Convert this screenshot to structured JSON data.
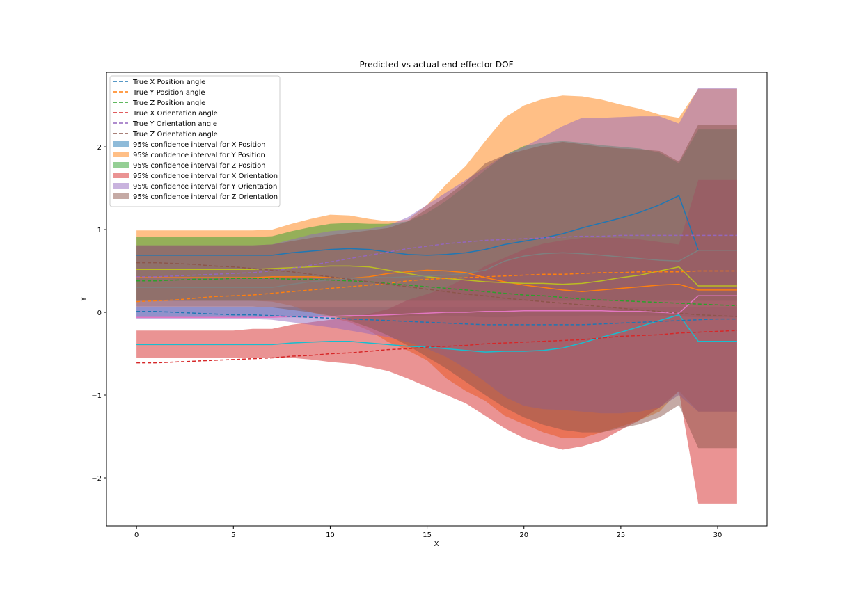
{
  "chart_data": {
    "type": "line",
    "title": "Predicted vs actual end-effector DOF",
    "xlabel": "X",
    "ylabel": "Y",
    "xlim": [
      -1.55,
      32.55
    ],
    "ylim": [
      -2.58,
      2.9
    ],
    "xticks": [
      0,
      5,
      10,
      15,
      20,
      25,
      30
    ],
    "yticks": [
      -2,
      -1,
      0,
      1,
      2
    ],
    "x": [
      0,
      1,
      2,
      3,
      4,
      5,
      6,
      7,
      8,
      9,
      10,
      11,
      12,
      13,
      14,
      15,
      16,
      17,
      18,
      19,
      20,
      21,
      22,
      23,
      24,
      25,
      26,
      27,
      28,
      29,
      30,
      31
    ],
    "legend_position": "upper left",
    "true_series": [
      {
        "name": "True X Position angle",
        "color": "#1f77b4",
        "values": [
          0.01,
          0.01,
          0.0,
          -0.01,
          -0.02,
          -0.03,
          -0.03,
          -0.04,
          -0.05,
          -0.06,
          -0.07,
          -0.08,
          -0.09,
          -0.1,
          -0.11,
          -0.12,
          -0.13,
          -0.14,
          -0.15,
          -0.15,
          -0.15,
          -0.15,
          -0.15,
          -0.15,
          -0.14,
          -0.13,
          -0.12,
          -0.11,
          -0.1,
          -0.09,
          -0.08,
          -0.08
        ]
      },
      {
        "name": "True Y Position angle",
        "color": "#ff7f0e",
        "values": [
          0.13,
          0.14,
          0.15,
          0.17,
          0.19,
          0.2,
          0.21,
          0.23,
          0.25,
          0.27,
          0.29,
          0.31,
          0.33,
          0.35,
          0.38,
          0.4,
          0.41,
          0.42,
          0.43,
          0.44,
          0.45,
          0.46,
          0.46,
          0.47,
          0.48,
          0.48,
          0.49,
          0.49,
          0.49,
          0.5,
          0.5,
          0.5
        ]
      },
      {
        "name": "True Z Position angle",
        "color": "#2ca02c",
        "values": [
          0.38,
          0.38,
          0.39,
          0.4,
          0.4,
          0.41,
          0.41,
          0.41,
          0.4,
          0.4,
          0.39,
          0.38,
          0.37,
          0.35,
          0.33,
          0.31,
          0.29,
          0.27,
          0.25,
          0.23,
          0.21,
          0.2,
          0.18,
          0.16,
          0.15,
          0.14,
          0.13,
          0.12,
          0.11,
          0.1,
          0.09,
          0.08
        ]
      },
      {
        "name": "True X Orientation angle",
        "color": "#d62728",
        "values": [
          -0.61,
          -0.61,
          -0.6,
          -0.59,
          -0.58,
          -0.57,
          -0.56,
          -0.55,
          -0.53,
          -0.52,
          -0.5,
          -0.49,
          -0.47,
          -0.45,
          -0.44,
          -0.42,
          -0.41,
          -0.4,
          -0.38,
          -0.37,
          -0.36,
          -0.35,
          -0.34,
          -0.33,
          -0.31,
          -0.29,
          -0.28,
          -0.27,
          -0.25,
          -0.24,
          -0.23,
          -0.22
        ]
      },
      {
        "name": "True Y Orientation angle",
        "color": "#9467bd",
        "values": [
          0.43,
          0.43,
          0.44,
          0.45,
          0.46,
          0.47,
          0.48,
          0.5,
          0.53,
          0.57,
          0.61,
          0.65,
          0.69,
          0.73,
          0.77,
          0.8,
          0.83,
          0.85,
          0.87,
          0.88,
          0.89,
          0.9,
          0.91,
          0.92,
          0.92,
          0.93,
          0.93,
          0.93,
          0.93,
          0.93,
          0.93,
          0.93
        ]
      },
      {
        "name": "True Z Orientation angle",
        "color": "#8c564b",
        "values": [
          0.6,
          0.6,
          0.59,
          0.58,
          0.56,
          0.55,
          0.53,
          0.51,
          0.49,
          0.46,
          0.43,
          0.4,
          0.37,
          0.34,
          0.31,
          0.28,
          0.25,
          0.22,
          0.2,
          0.17,
          0.15,
          0.13,
          0.11,
          0.09,
          0.07,
          0.05,
          0.03,
          0.01,
          -0.01,
          -0.03,
          -0.04,
          -0.05
        ]
      }
    ],
    "confidence_intervals": [
      {
        "name": "95% confidence interval for X Position",
        "color": "#1f77b4",
        "lower": [
          -0.06,
          -0.06,
          -0.06,
          -0.06,
          -0.06,
          -0.06,
          -0.06,
          -0.06,
          -0.06,
          -0.06,
          -0.05,
          -0.05,
          -0.06,
          -0.06,
          -0.05,
          -0.04,
          -0.04,
          -0.05,
          -0.06,
          -0.06,
          -0.05,
          -0.05,
          -0.05,
          -0.04,
          -0.04,
          -0.04,
          -0.04,
          -0.04,
          -0.05,
          -0.06,
          -0.06,
          -0.06
        ],
        "upper": [
          0.06,
          0.06,
          0.06,
          0.06,
          0.06,
          0.06,
          0.06,
          0.06,
          0.06,
          0.06,
          0.06,
          0.06,
          0.06,
          0.06,
          0.06,
          0.06,
          0.06,
          0.06,
          0.06,
          0.06,
          0.06,
          0.06,
          0.06,
          0.06,
          0.06,
          0.06,
          0.06,
          0.06,
          0.06,
          0.06,
          0.06,
          0.06
        ]
      },
      {
        "name": "95% confidence interval for Y Position",
        "color": "#ff7f0e",
        "lower": [
          0.14,
          0.14,
          0.14,
          0.14,
          0.14,
          0.14,
          0.14,
          0.13,
          0.08,
          0.0,
          -0.06,
          -0.12,
          -0.22,
          -0.36,
          -0.46,
          -0.58,
          -0.8,
          -0.95,
          -1.07,
          -1.25,
          -1.35,
          -1.45,
          -1.52,
          -1.52,
          -1.45,
          -1.38,
          -1.3,
          -1.2,
          -0.95,
          -1.2,
          -1.2,
          -1.2
        ],
        "upper": [
          0.99,
          0.99,
          0.99,
          0.99,
          0.99,
          0.99,
          0.99,
          1.0,
          1.07,
          1.13,
          1.18,
          1.17,
          1.13,
          1.1,
          1.12,
          1.3,
          1.55,
          1.77,
          2.07,
          2.35,
          2.5,
          2.58,
          2.62,
          2.61,
          2.57,
          2.51,
          2.46,
          2.39,
          2.35,
          2.7,
          2.7,
          2.7
        ]
      },
      {
        "name": "95% confidence interval for Z Position",
        "color": "#2ca02c",
        "lower": [
          0.14,
          0.14,
          0.14,
          0.14,
          0.14,
          0.14,
          0.14,
          0.14,
          0.14,
          0.14,
          0.14,
          0.14,
          0.14,
          0.14,
          0.14,
          0.14,
          0.14,
          0.14,
          0.14,
          0.14,
          0.14,
          0.14,
          0.14,
          0.14,
          0.14,
          0.14,
          0.14,
          0.14,
          0.14,
          0.14,
          0.14,
          0.14
        ],
        "upper": [
          0.91,
          0.91,
          0.91,
          0.91,
          0.91,
          0.91,
          0.91,
          0.92,
          0.98,
          1.03,
          1.07,
          1.08,
          1.07,
          1.07,
          1.1,
          1.2,
          1.35,
          1.53,
          1.72,
          1.9,
          2.01,
          2.05,
          2.07,
          2.05,
          2.02,
          2.0,
          1.98,
          1.93,
          1.8,
          2.21,
          2.21,
          2.21
        ]
      },
      {
        "name": "95% confidence interval for X Orientation",
        "color": "#d62728",
        "lower": [
          -0.55,
          -0.55,
          -0.55,
          -0.55,
          -0.55,
          -0.55,
          -0.55,
          -0.55,
          -0.55,
          -0.57,
          -0.6,
          -0.62,
          -0.66,
          -0.71,
          -0.8,
          -0.9,
          -1.0,
          -1.1,
          -1.25,
          -1.4,
          -1.52,
          -1.6,
          -1.66,
          -1.62,
          -1.55,
          -1.42,
          -1.3,
          -1.15,
          -0.95,
          -2.31,
          -2.31,
          -2.31
        ],
        "upper": [
          -0.22,
          -0.22,
          -0.22,
          -0.22,
          -0.22,
          -0.22,
          -0.2,
          -0.2,
          -0.15,
          -0.12,
          -0.09,
          -0.06,
          -0.02,
          0.04,
          0.15,
          0.22,
          0.3,
          0.42,
          0.56,
          0.66,
          0.76,
          0.83,
          0.87,
          0.9,
          0.9,
          0.9,
          0.88,
          0.85,
          0.82,
          1.6,
          1.6,
          1.6
        ]
      },
      {
        "name": "95% confidence interval for Y Orientation",
        "color": "#9467bd",
        "lower": [
          -0.08,
          -0.08,
          -0.08,
          -0.08,
          -0.08,
          -0.08,
          -0.08,
          -0.09,
          -0.12,
          -0.15,
          -0.18,
          -0.22,
          -0.26,
          -0.3,
          -0.36,
          -0.44,
          -0.54,
          -0.68,
          -0.84,
          -1.02,
          -1.13,
          -1.17,
          -1.18,
          -1.2,
          -1.22,
          -1.22,
          -1.2,
          -1.15,
          -1.0,
          -1.2,
          -1.2,
          -1.2
        ],
        "upper": [
          0.81,
          0.81,
          0.81,
          0.81,
          0.81,
          0.81,
          0.81,
          0.82,
          0.88,
          0.94,
          0.98,
          1.0,
          1.01,
          1.05,
          1.15,
          1.3,
          1.45,
          1.6,
          1.75,
          1.9,
          2.0,
          2.12,
          2.25,
          2.35,
          2.35,
          2.36,
          2.37,
          2.37,
          2.28,
          2.71,
          2.71,
          2.71
        ]
      },
      {
        "name": "95% confidence interval for Z Orientation",
        "color": "#8c564b",
        "lower": [
          0.07,
          0.07,
          0.07,
          0.07,
          0.07,
          0.07,
          0.07,
          0.06,
          0.03,
          0.0,
          -0.04,
          -0.1,
          -0.18,
          -0.28,
          -0.4,
          -0.54,
          -0.68,
          -0.84,
          -1.0,
          -1.15,
          -1.27,
          -1.36,
          -1.42,
          -1.45,
          -1.45,
          -1.4,
          -1.35,
          -1.27,
          -1.12,
          -1.64,
          -1.64,
          -1.64
        ],
        "upper": [
          0.81,
          0.81,
          0.81,
          0.81,
          0.81,
          0.81,
          0.81,
          0.82,
          0.86,
          0.9,
          0.93,
          0.96,
          0.99,
          1.02,
          1.1,
          1.25,
          1.4,
          1.58,
          1.8,
          1.9,
          1.96,
          2.02,
          2.06,
          2.03,
          2.0,
          1.98,
          1.97,
          1.95,
          1.82,
          2.27,
          2.27,
          2.27
        ]
      }
    ],
    "predicted_series": [
      {
        "color": "#1f77b4",
        "values": [
          0.69,
          0.69,
          0.69,
          0.69,
          0.69,
          0.69,
          0.69,
          0.69,
          0.72,
          0.74,
          0.76,
          0.77,
          0.76,
          0.73,
          0.7,
          0.69,
          0.7,
          0.72,
          0.76,
          0.82,
          0.86,
          0.9,
          0.95,
          1.02,
          1.08,
          1.14,
          1.21,
          1.3,
          1.41,
          0.75,
          0.75,
          0.75
        ]
      },
      {
        "color": "#ff7f0e",
        "values": [
          0.42,
          0.42,
          0.42,
          0.42,
          0.42,
          0.42,
          0.42,
          0.43,
          0.43,
          0.43,
          0.42,
          0.41,
          0.43,
          0.47,
          0.49,
          0.51,
          0.5,
          0.48,
          0.42,
          0.37,
          0.33,
          0.3,
          0.27,
          0.25,
          0.27,
          0.29,
          0.31,
          0.33,
          0.34,
          0.27,
          0.27,
          0.27
        ]
      },
      {
        "color": "#bcbd22",
        "values": [
          0.52,
          0.52,
          0.52,
          0.52,
          0.52,
          0.52,
          0.52,
          0.53,
          0.54,
          0.55,
          0.56,
          0.56,
          0.55,
          0.51,
          0.47,
          0.43,
          0.41,
          0.39,
          0.37,
          0.36,
          0.35,
          0.35,
          0.34,
          0.35,
          0.38,
          0.42,
          0.45,
          0.5,
          0.55,
          0.32,
          0.32,
          0.32
        ]
      },
      {
        "color": "#e377c2",
        "values": [
          -0.06,
          -0.06,
          -0.06,
          -0.06,
          -0.06,
          -0.06,
          -0.06,
          -0.06,
          -0.05,
          -0.05,
          -0.05,
          -0.04,
          -0.04,
          -0.03,
          -0.02,
          -0.01,
          0.0,
          0.0,
          0.01,
          0.01,
          0.02,
          0.02,
          0.02,
          0.02,
          0.02,
          0.01,
          0.01,
          0.0,
          -0.01,
          0.2,
          0.2,
          0.2
        ]
      },
      {
        "color": "#17becf",
        "values": [
          -0.39,
          -0.39,
          -0.39,
          -0.39,
          -0.39,
          -0.39,
          -0.39,
          -0.39,
          -0.37,
          -0.36,
          -0.35,
          -0.35,
          -0.37,
          -0.39,
          -0.41,
          -0.42,
          -0.44,
          -0.46,
          -0.48,
          -0.47,
          -0.47,
          -0.46,
          -0.43,
          -0.37,
          -0.3,
          -0.24,
          -0.17,
          -0.1,
          -0.03,
          -0.35,
          -0.35,
          -0.35
        ]
      },
      {
        "color": "#7f7f7f",
        "values": [
          0.3,
          0.3,
          0.3,
          0.3,
          0.3,
          0.3,
          0.3,
          0.3,
          0.34,
          0.37,
          0.39,
          0.41,
          0.42,
          0.42,
          0.43,
          0.44,
          0.45,
          0.47,
          0.51,
          0.62,
          0.68,
          0.71,
          0.72,
          0.71,
          0.69,
          0.67,
          0.65,
          0.63,
          0.62,
          0.75,
          0.75,
          0.75
        ]
      }
    ]
  }
}
